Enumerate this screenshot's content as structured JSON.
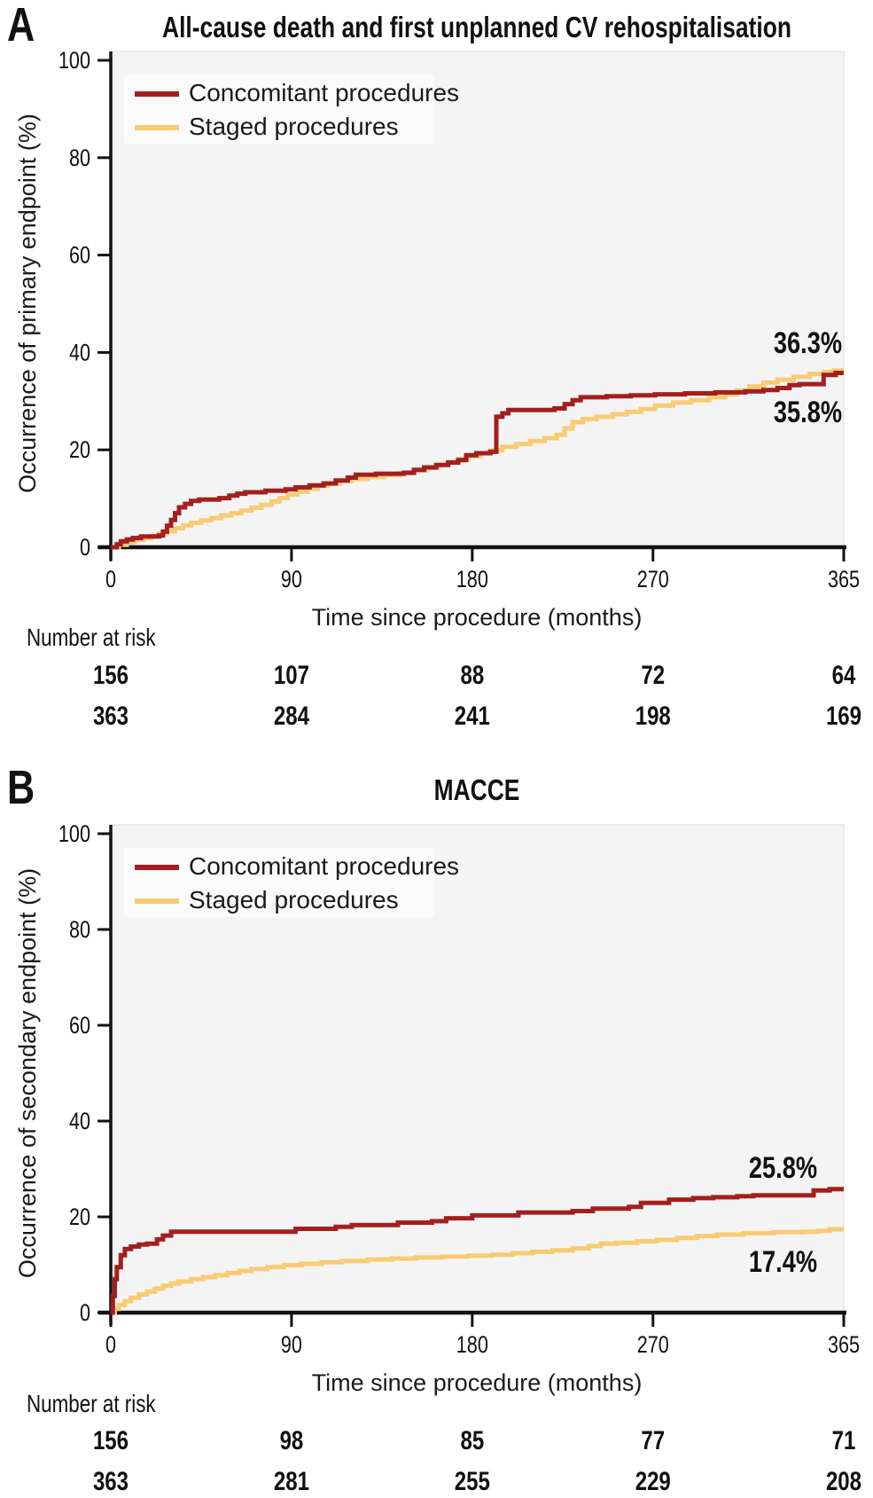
{
  "colors": {
    "concomitant": "#A31F1F",
    "concomitant_text": "#B22222",
    "staged": "#F8CB74",
    "staged_text": "#FACC72",
    "plot_bg": "#F4F4F4",
    "plot_border": "#DCDCDC",
    "legend_bg": "#FBFBFB",
    "axis": "#111111"
  },
  "chart_data": [
    {
      "type": "line",
      "panel_letter": "A",
      "title": "All-cause death and first unplanned CV rehospitalisation",
      "xlabel": "Time since procedure (months)",
      "ylabel": "Occurrence of primary endpoint (%)",
      "xlim": [
        0,
        365
      ],
      "ylim": [
        0,
        100
      ],
      "x_ticks": [
        0,
        90,
        180,
        270,
        365
      ],
      "y_ticks": [
        0,
        20,
        40,
        60,
        80,
        100
      ],
      "grid": false,
      "legend_position": "top-left",
      "series": [
        {
          "name": "Concomitant procedures",
          "key": "concomitant",
          "end_label": "35.8%",
          "step_points": [
            [
              0,
              0
            ],
            [
              3,
              0.6
            ],
            [
              5,
              1.2
            ],
            [
              8,
              1.6
            ],
            [
              11,
              1.9
            ],
            [
              15,
              2.2
            ],
            [
              24,
              2.4
            ],
            [
              26,
              3.2
            ],
            [
              28,
              4.4
            ],
            [
              30,
              5.6
            ],
            [
              32,
              7.0
            ],
            [
              34,
              8.2
            ],
            [
              37,
              8.9
            ],
            [
              40,
              9.5
            ],
            [
              44,
              9.8
            ],
            [
              54,
              10.1
            ],
            [
              59,
              10.6
            ],
            [
              63,
              11.0
            ],
            [
              67,
              11.3
            ],
            [
              77,
              11.6
            ],
            [
              87,
              11.9
            ],
            [
              92,
              12.3
            ],
            [
              99,
              12.7
            ],
            [
              106,
              13.1
            ],
            [
              112,
              13.7
            ],
            [
              118,
              14.3
            ],
            [
              122,
              14.9
            ],
            [
              132,
              15.1
            ],
            [
              146,
              15.3
            ],
            [
              151,
              15.9
            ],
            [
              156,
              16.4
            ],
            [
              162,
              16.9
            ],
            [
              168,
              17.4
            ],
            [
              173,
              17.9
            ],
            [
              177,
              18.9
            ],
            [
              182,
              19.3
            ],
            [
              189,
              19.6
            ],
            [
              192,
              26.8
            ],
            [
              195,
              27.5
            ],
            [
              198,
              28.2
            ],
            [
              221,
              28.5
            ],
            [
              226,
              29.4
            ],
            [
              230,
              30.2
            ],
            [
              234,
              30.8
            ],
            [
              247,
              31.0
            ],
            [
              259,
              31.2
            ],
            [
              271,
              31.4
            ],
            [
              286,
              31.6
            ],
            [
              301,
              31.8
            ],
            [
              316,
              32.0
            ],
            [
              325,
              32.3
            ],
            [
              332,
              32.7
            ],
            [
              338,
              33.3
            ],
            [
              343,
              33.5
            ],
            [
              355,
              35.4
            ],
            [
              361,
              35.8
            ]
          ]
        },
        {
          "name": "Staged procedures",
          "key": "staged",
          "end_label": "36.3%",
          "step_points": [
            [
              0,
              0
            ],
            [
              4,
              0.5
            ],
            [
              8,
              1.0
            ],
            [
              12,
              1.5
            ],
            [
              16,
              1.9
            ],
            [
              20,
              2.3
            ],
            [
              24,
              2.8
            ],
            [
              28,
              3.3
            ],
            [
              32,
              3.9
            ],
            [
              36,
              4.5
            ],
            [
              40,
              5.0
            ],
            [
              45,
              5.5
            ],
            [
              50,
              6.0
            ],
            [
              55,
              6.5
            ],
            [
              60,
              7.0
            ],
            [
              65,
              7.5
            ],
            [
              70,
              8.1
            ],
            [
              75,
              8.7
            ],
            [
              80,
              9.4
            ],
            [
              84,
              10.1
            ],
            [
              88,
              10.8
            ],
            [
              93,
              11.4
            ],
            [
              98,
              12.0
            ],
            [
              103,
              12.6
            ],
            [
              108,
              13.1
            ],
            [
              114,
              13.6
            ],
            [
              120,
              14.0
            ],
            [
              128,
              14.4
            ],
            [
              136,
              14.8
            ],
            [
              144,
              15.2
            ],
            [
              151,
              15.7
            ],
            [
              157,
              16.3
            ],
            [
              163,
              16.9
            ],
            [
              168,
              17.5
            ],
            [
              173,
              18.1
            ],
            [
              178,
              18.7
            ],
            [
              184,
              19.3
            ],
            [
              189,
              19.9
            ],
            [
              195,
              20.6
            ],
            [
              202,
              21.2
            ],
            [
              209,
              21.8
            ],
            [
              216,
              22.4
            ],
            [
              222,
              23.1
            ],
            [
              226,
              24.4
            ],
            [
              230,
              25.7
            ],
            [
              235,
              26.3
            ],
            [
              242,
              26.8
            ],
            [
              250,
              27.3
            ],
            [
              257,
              27.8
            ],
            [
              264,
              28.4
            ],
            [
              271,
              29.1
            ],
            [
              280,
              29.7
            ],
            [
              289,
              30.2
            ],
            [
              298,
              30.8
            ],
            [
              306,
              31.4
            ],
            [
              312,
              32.2
            ],
            [
              318,
              33.0
            ],
            [
              325,
              33.8
            ],
            [
              332,
              34.4
            ],
            [
              340,
              35.0
            ],
            [
              348,
              35.6
            ],
            [
              355,
              36.0
            ],
            [
              360,
              36.3
            ]
          ]
        }
      ],
      "risk_table": {
        "header": "Number at risk",
        "rows": [
          {
            "key": "concomitant",
            "counts": [
              156,
              107,
              88,
              72,
              64
            ]
          },
          {
            "key": "staged",
            "counts": [
              363,
              284,
              241,
              198,
              169
            ]
          }
        ]
      }
    },
    {
      "type": "line",
      "panel_letter": "B",
      "title": "MACCE",
      "xlabel": "Time since procedure (months)",
      "ylabel": "Occurrence of secondary endpoint (%)",
      "xlim": [
        0,
        365
      ],
      "ylim": [
        0,
        100
      ],
      "x_ticks": [
        0,
        90,
        180,
        270,
        365
      ],
      "y_ticks": [
        0,
        20,
        40,
        60,
        80,
        100
      ],
      "grid": false,
      "legend_position": "top-left",
      "series": [
        {
          "name": "Concomitant procedures",
          "key": "concomitant",
          "end_label": "25.8%",
          "step_points": [
            [
              0,
              0
            ],
            [
              1,
              3.5
            ],
            [
              2,
              7.0
            ],
            [
              3,
              9.5
            ],
            [
              5,
              12.0
            ],
            [
              7,
              13.3
            ],
            [
              10,
              13.8
            ],
            [
              14,
              14.2
            ],
            [
              18,
              14.4
            ],
            [
              23,
              15.3
            ],
            [
              26,
              16.1
            ],
            [
              30,
              16.9
            ],
            [
              92,
              17.5
            ],
            [
              112,
              17.9
            ],
            [
              120,
              18.3
            ],
            [
              143,
              18.8
            ],
            [
              160,
              19.1
            ],
            [
              167,
              19.7
            ],
            [
              180,
              20.3
            ],
            [
              203,
              20.9
            ],
            [
              230,
              21.2
            ],
            [
              240,
              21.7
            ],
            [
              258,
              22.1
            ],
            [
              264,
              22.9
            ],
            [
              278,
              23.6
            ],
            [
              290,
              23.9
            ],
            [
              300,
              24.1
            ],
            [
              312,
              24.3
            ],
            [
              320,
              24.5
            ],
            [
              350,
              25.5
            ],
            [
              358,
              25.8
            ]
          ]
        },
        {
          "name": "Staged procedures",
          "key": "staged",
          "end_label": "17.4%",
          "step_points": [
            [
              0,
              0
            ],
            [
              2,
              0.8
            ],
            [
              4,
              1.6
            ],
            [
              7,
              2.4
            ],
            [
              10,
              3.1
            ],
            [
              14,
              3.8
            ],
            [
              18,
              4.4
            ],
            [
              22,
              5.0
            ],
            [
              26,
              5.6
            ],
            [
              30,
              6.1
            ],
            [
              34,
              6.5
            ],
            [
              40,
              7.0
            ],
            [
              46,
              7.4
            ],
            [
              52,
              7.8
            ],
            [
              58,
              8.3
            ],
            [
              64,
              8.7
            ],
            [
              70,
              9.1
            ],
            [
              78,
              9.5
            ],
            [
              86,
              9.9
            ],
            [
              95,
              10.2
            ],
            [
              105,
              10.5
            ],
            [
              115,
              10.8
            ],
            [
              128,
              11.1
            ],
            [
              140,
              11.3
            ],
            [
              152,
              11.5
            ],
            [
              165,
              11.7
            ],
            [
              178,
              11.9
            ],
            [
              190,
              12.1
            ],
            [
              200,
              12.4
            ],
            [
              210,
              12.7
            ],
            [
              220,
              13.0
            ],
            [
              230,
              13.4
            ],
            [
              238,
              13.9
            ],
            [
              244,
              14.4
            ],
            [
              252,
              14.6
            ],
            [
              262,
              14.9
            ],
            [
              272,
              15.2
            ],
            [
              282,
              15.6
            ],
            [
              292,
              16.0
            ],
            [
              302,
              16.3
            ],
            [
              315,
              16.6
            ],
            [
              330,
              16.8
            ],
            [
              345,
              16.9
            ],
            [
              352,
              17.1
            ],
            [
              358,
              17.4
            ]
          ]
        }
      ],
      "risk_table": {
        "header": "Number at risk",
        "rows": [
          {
            "key": "concomitant",
            "counts": [
              156,
              98,
              85,
              77,
              71
            ]
          },
          {
            "key": "staged",
            "counts": [
              363,
              281,
              255,
              229,
              208
            ]
          }
        ]
      }
    }
  ]
}
